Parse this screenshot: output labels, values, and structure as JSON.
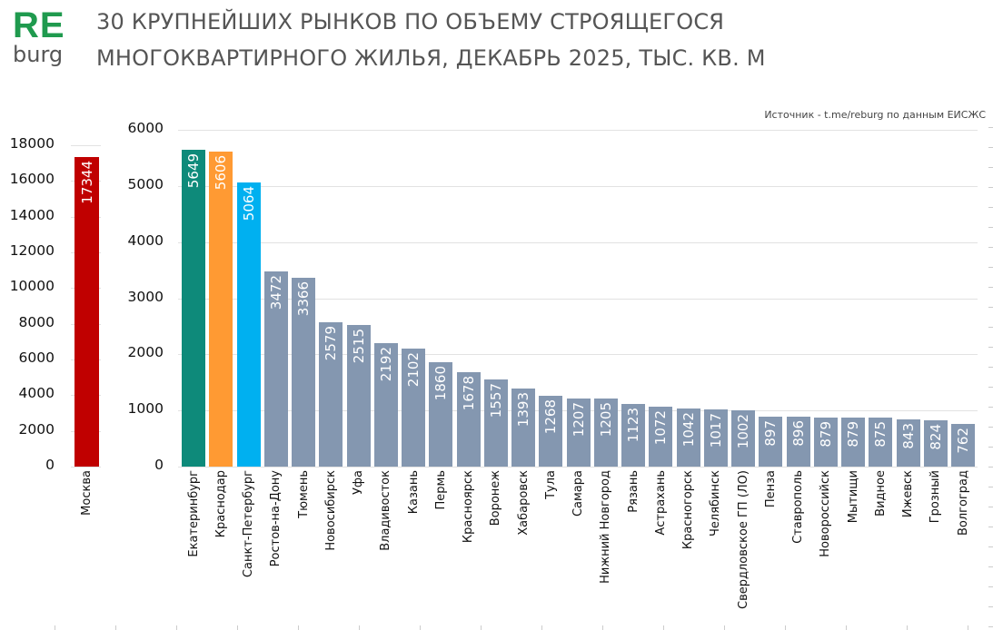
{
  "header": {
    "logo_top": "RE",
    "logo_bottom": "burg",
    "title_line1": "30 КРУПНЕЙШИХ РЫНКОВ ПО ОБЪЕМУ СТРОЯЩЕГОСЯ",
    "title_line2": "МНОГОКВАРТИРНОГО ЖИЛЬЯ, ДЕКАБРЬ 2025, ТЫС. КВ. М",
    "source": "Источник - t.me/reburg по данным ЕИСЖС"
  },
  "colors": {
    "moscow": "#c00000",
    "ekaterinburg": "#0e8a7a",
    "krasnodar": "#ff9a33",
    "spb": "#00b0f0",
    "default": "#8497b0",
    "logo_green": "#1f9a4e",
    "grid": "#e2e2e2"
  },
  "chart_data": [
    {
      "type": "bar",
      "title": "30 КРУПНЕЙШИХ РЫНКОВ ПО ОБЪЕМУ СТРОЯЩЕГОСЯ МНОГОКВАРТИРНОГО ЖИЛЬЯ, ДЕКАБРЬ 2025, ТЫС. КВ. М",
      "panel": "left",
      "categories": [
        "Москва"
      ],
      "values": [
        17344
      ],
      "colors": [
        "#c00000"
      ],
      "yticks": [
        0,
        2000,
        4000,
        6000,
        8000,
        10000,
        12000,
        14000,
        16000,
        18000
      ],
      "ylim": [
        0,
        18000
      ],
      "xlabel": "",
      "ylabel": "",
      "grid": true,
      "data_labels": true
    },
    {
      "type": "bar",
      "panel": "right",
      "categories": [
        "Екатеринбург",
        "Краснодар",
        "Санкт-Петербург",
        "Ростов-на-Дону",
        "Тюмень",
        "Новосибирск",
        "Уфа",
        "Владивосток",
        "Казань",
        "Пермь",
        "Красноярск",
        "Воронеж",
        "Хабаровск",
        "Тула",
        "Самара",
        "Нижний Новгород",
        "Рязань",
        "Астрахань",
        "Красногорск",
        "Челябинск",
        "Свердловское ГП (ЛО)",
        "Пенза",
        "Ставрополь",
        "Новороссийск",
        "Мытищи",
        "Видное",
        "Ижевск",
        "Грозный",
        "Волгоград"
      ],
      "values": [
        5649,
        5606,
        5064,
        3472,
        3366,
        2579,
        2515,
        2192,
        2102,
        1860,
        1678,
        1557,
        1393,
        1268,
        1207,
        1205,
        1123,
        1072,
        1042,
        1017,
        1002,
        897,
        896,
        879,
        879,
        875,
        843,
        824,
        762
      ],
      "colors": [
        "#0e8a7a",
        "#ff9a33",
        "#00b0f0",
        "#8497b0",
        "#8497b0",
        "#8497b0",
        "#8497b0",
        "#8497b0",
        "#8497b0",
        "#8497b0",
        "#8497b0",
        "#8497b0",
        "#8497b0",
        "#8497b0",
        "#8497b0",
        "#8497b0",
        "#8497b0",
        "#8497b0",
        "#8497b0",
        "#8497b0",
        "#8497b0",
        "#8497b0",
        "#8497b0",
        "#8497b0",
        "#8497b0",
        "#8497b0",
        "#8497b0",
        "#8497b0",
        "#8497b0"
      ],
      "yticks": [
        0,
        1000,
        2000,
        3000,
        4000,
        5000,
        6000
      ],
      "ylim": [
        0,
        6000
      ],
      "xlabel": "",
      "ylabel": "",
      "grid": true,
      "data_labels": true
    }
  ]
}
